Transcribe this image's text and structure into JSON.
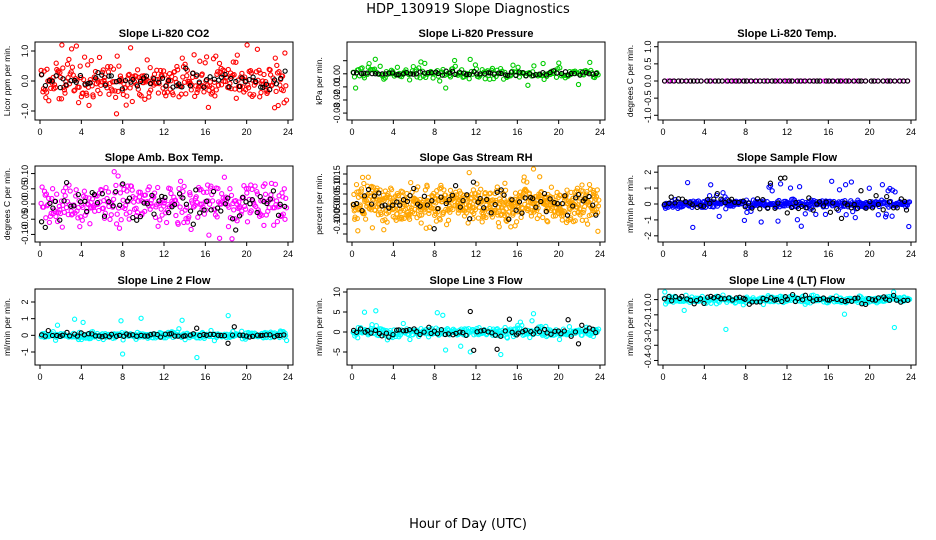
{
  "title": "HDP_130919  Slope Diagnostics",
  "xlabel": "Hour of Day (UTC)",
  "chart_data": [
    {
      "type": "scatter",
      "title": "Slope Li-820 CO2",
      "ylabel": "Licor ppm per min.",
      "xlim": [
        0,
        24
      ],
      "ylim": [
        -1.2,
        1.2
      ],
      "xticks": [
        0,
        4,
        8,
        12,
        16,
        20,
        24
      ],
      "yticks": [
        -1,
        0,
        1
      ],
      "ytick_labels": [
        "-1.0",
        "0.0",
        "1.0"
      ],
      "series": [
        {
          "color": "#ff0000",
          "seed": 11,
          "n": 330,
          "spread": 0.35,
          "outlier_rate": 0.1,
          "outlier_spread": 0.55
        },
        {
          "color": "#000000",
          "seed": 12,
          "n": 70,
          "spread": 0.15,
          "outlier_rate": 0.0,
          "outlier_spread": 0.3
        }
      ]
    },
    {
      "type": "scatter",
      "title": "Slope Li-820 Pressure",
      "ylabel": "kPa per min.",
      "xlim": [
        0,
        24
      ],
      "ylim": [
        -0.033,
        0.022
      ],
      "xticks": [
        0,
        4,
        8,
        12,
        16,
        20,
        24
      ],
      "yticks": [
        -0.03,
        -0.02,
        -0.01,
        0,
        0.01
      ],
      "ytick_labels": [
        "-0.03",
        "-0.02",
        "-0.01",
        "0.00",
        ""
      ],
      "series": [
        {
          "color": "#00cc00",
          "seed": 21,
          "n": 200,
          "spread": 0.002,
          "outlier_rate": 0.15,
          "outlier_spread": 0.008
        },
        {
          "color": "#000000",
          "seed": 22,
          "n": 70,
          "spread": 0.0007,
          "outlier_rate": 0.0,
          "outlier_spread": 0.002
        }
      ]
    },
    {
      "type": "scatter",
      "title": "Slope Li-820 Temp.",
      "ylabel": "degrees C per min.",
      "xlim": [
        0,
        24
      ],
      "ylim": [
        -1.05,
        1.05
      ],
      "xticks": [
        0,
        4,
        8,
        12,
        16,
        20,
        24
      ],
      "yticks": [
        -1,
        -0.5,
        0,
        0.5,
        1
      ],
      "ytick_labels": [
        "-1.0",
        "-0.5",
        "0.0",
        "0.5",
        "1.0"
      ],
      "series": [
        {
          "color": "#ff00ff",
          "seed": 31,
          "n": 60,
          "spread": 0.0,
          "outlier_rate": 0.0,
          "outlier_spread": 0.0
        },
        {
          "color": "#000000",
          "seed": 32,
          "n": 60,
          "spread": 0.0,
          "outlier_rate": 0.0,
          "outlier_spread": 0.0
        }
      ]
    },
    {
      "type": "scatter",
      "title": "Slope Amb. Box Temp.",
      "ylabel": "degrees C per min.",
      "xlim": [
        0,
        24
      ],
      "ylim": [
        -0.115,
        0.115
      ],
      "xticks": [
        0,
        4,
        8,
        12,
        16,
        20,
        24
      ],
      "yticks": [
        -0.1,
        -0.05,
        0,
        0.05,
        0.1
      ],
      "ytick_labels": [
        "-0.10",
        "-0.05",
        "0.00",
        "0.05",
        "0.10"
      ],
      "series": [
        {
          "color": "#ff00ff",
          "seed": 41,
          "n": 330,
          "spread": 0.035,
          "outlier_rate": 0.05,
          "outlier_spread": 0.05
        },
        {
          "color": "#000000",
          "seed": 42,
          "n": 70,
          "spread": 0.03,
          "outlier_rate": 0.0,
          "outlier_spread": 0.05
        }
      ]
    },
    {
      "type": "scatter",
      "title": "Slope Gas Stream RH",
      "ylabel": "percent per min.",
      "xlim": [
        0,
        24
      ],
      "ylim": [
        -0.175,
        0.175
      ],
      "xticks": [
        0,
        4,
        8,
        12,
        16,
        20,
        24
      ],
      "yticks": [
        -0.15,
        -0.1,
        -0.05,
        0,
        0.05,
        0.1,
        0.15
      ],
      "ytick_labels": [
        "",
        "-0.10",
        "-0.05",
        "0.00",
        "0.05",
        "0.10",
        "0.15"
      ],
      "series": [
        {
          "color": "#ffa500",
          "seed": 51,
          "n": 650,
          "spread": 0.045,
          "outlier_rate": 0.04,
          "outlier_spread": 0.08
        },
        {
          "color": "#000000",
          "seed": 52,
          "n": 70,
          "spread": 0.04,
          "outlier_rate": 0.0,
          "outlier_spread": 0.06
        }
      ]
    },
    {
      "type": "scatter",
      "title": "Slope Sample Flow",
      "ylabel": "ml/min per min.",
      "xlim": [
        0,
        24
      ],
      "ylim": [
        -2.2,
        2.2
      ],
      "xticks": [
        0,
        4,
        8,
        12,
        16,
        20,
        24
      ],
      "yticks": [
        -2,
        -1,
        0,
        1,
        2
      ],
      "ytick_labels": [
        "-2",
        "-1",
        "0",
        "1",
        "2"
      ],
      "series": [
        {
          "color": "#0000ff",
          "seed": 61,
          "n": 380,
          "spread": 0.12,
          "outlier_rate": 0.15,
          "outlier_spread": 1.0
        },
        {
          "color": "#000000",
          "seed": 62,
          "n": 70,
          "spread": 0.25,
          "outlier_rate": 0.1,
          "outlier_spread": 0.9
        }
      ]
    },
    {
      "type": "scatter",
      "title": "Slope Line 2 Flow",
      "ylabel": "ml/min per min.",
      "xlim": [
        0,
        24
      ],
      "ylim": [
        -1.6,
        2.6
      ],
      "xticks": [
        0,
        4,
        8,
        12,
        16,
        20,
        24
      ],
      "yticks": [
        -1,
        0,
        1,
        2
      ],
      "ytick_labels": [
        "-1",
        "0",
        "1",
        "2"
      ],
      "series": [
        {
          "color": "#00ffff",
          "seed": 71,
          "n": 330,
          "spread": 0.1,
          "outlier_rate": 0.03,
          "outlier_spread": 1.0
        },
        {
          "color": "#000000",
          "seed": 72,
          "n": 70,
          "spread": 0.05,
          "outlier_rate": 0.05,
          "outlier_spread": 0.4
        }
      ]
    },
    {
      "type": "scatter",
      "title": "Slope Line 3 Flow",
      "ylabel": "ml/min per min.",
      "xlim": [
        0,
        24
      ],
      "ylim": [
        -7.5,
        10
      ],
      "xticks": [
        0,
        4,
        8,
        12,
        16,
        20,
        24
      ],
      "yticks": [
        -5,
        0,
        5,
        10
      ],
      "ytick_labels": [
        "-5",
        "0",
        "5",
        "10"
      ],
      "series": [
        {
          "color": "#00ffff",
          "seed": 81,
          "n": 330,
          "spread": 0.6,
          "outlier_rate": 0.05,
          "outlier_spread": 4.0
        },
        {
          "color": "#000000",
          "seed": 82,
          "n": 70,
          "spread": 0.5,
          "outlier_rate": 0.1,
          "outlier_spread": 3.5
        }
      ]
    },
    {
      "type": "scatter",
      "title": "Slope Line 4 (LT) Flow",
      "ylabel": "ml/min per min.",
      "xlim": [
        0,
        24
      ],
      "ylim": [
        -0.41,
        0.05
      ],
      "xticks": [
        0,
        4,
        8,
        12,
        16,
        20,
        24
      ],
      "yticks": [
        -0.4,
        -0.3,
        -0.2,
        -0.1,
        0
      ],
      "ytick_labels": [
        "-0.4",
        "-0.3",
        "-0.2",
        "-0.1",
        "0.0"
      ],
      "series": [
        {
          "color": "#00ffff",
          "seed": 91,
          "n": 330,
          "spread": 0.012,
          "outlier_rate": 0.02,
          "outlier_spread": 0.15
        },
        {
          "color": "#000000",
          "seed": 92,
          "n": 70,
          "spread": 0.015,
          "outlier_rate": 0.0,
          "outlier_spread": 0.03
        }
      ]
    }
  ]
}
